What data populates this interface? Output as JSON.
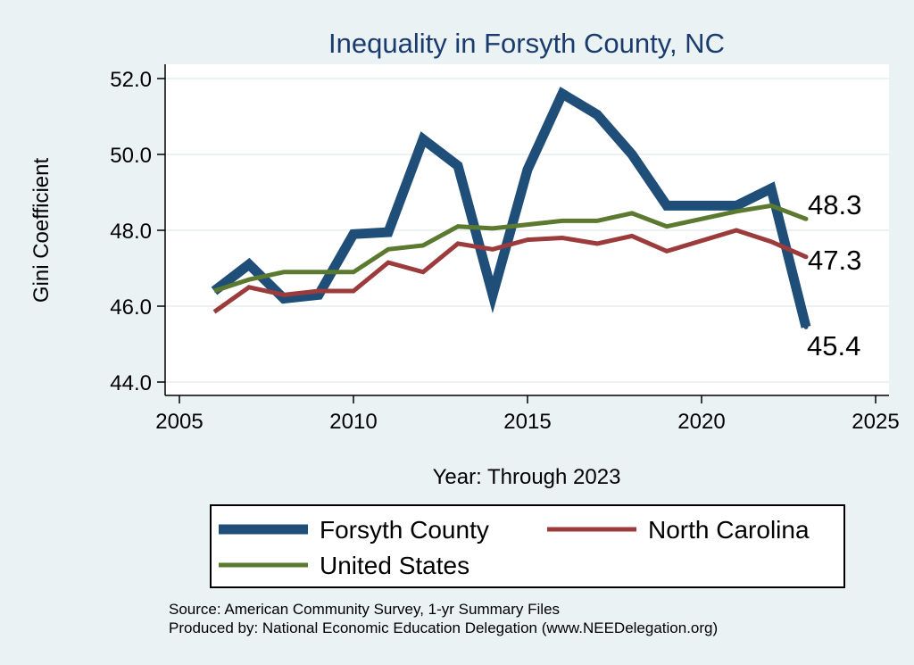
{
  "chart_data": {
    "type": "line",
    "title": "Inequality in Forsyth County, NC",
    "xlabel": "Year: Through 2023",
    "ylabel": "Gini Coefficient",
    "xlim": [
      2005,
      2025
    ],
    "ylim": [
      44,
      52
    ],
    "xticks": [
      2005,
      2010,
      2015,
      2020,
      2025
    ],
    "yticks": [
      44,
      46,
      48,
      50,
      52
    ],
    "ytick_labels": [
      "44.0",
      "46.0",
      "48.0",
      "50.0",
      "52.0"
    ],
    "grid": "horizontal",
    "x": [
      2006,
      2007,
      2008,
      2009,
      2010,
      2011,
      2012,
      2013,
      2014,
      2015,
      2016,
      2017,
      2018,
      2019,
      2021,
      2022,
      2023
    ],
    "series": [
      {
        "name": "Forsyth County",
        "color": "#1f4e79",
        "values": [
          46.4,
          47.1,
          46.2,
          46.3,
          47.9,
          47.95,
          50.4,
          49.7,
          46.3,
          49.6,
          51.6,
          51.05,
          50.0,
          48.65,
          48.65,
          49.1,
          45.45
        ],
        "end_label": "45.4"
      },
      {
        "name": "North Carolina",
        "color": "#9c3b3b",
        "values": [
          45.85,
          46.5,
          46.3,
          46.4,
          46.4,
          47.15,
          46.9,
          47.65,
          47.5,
          47.75,
          47.8,
          47.65,
          47.85,
          47.45,
          48.0,
          47.7,
          47.3
        ],
        "end_label": "47.3"
      },
      {
        "name": "United States",
        "color": "#5b7a30",
        "values": [
          46.4,
          46.7,
          46.9,
          46.9,
          46.9,
          47.5,
          47.6,
          48.1,
          48.05,
          48.15,
          48.25,
          48.25,
          48.45,
          48.1,
          48.5,
          48.65,
          48.3
        ],
        "end_label": "48.3"
      }
    ],
    "legend": {
      "placement": "bottom",
      "items": [
        "Forsyth County",
        "North Carolina",
        "United States"
      ]
    },
    "source_lines": [
      "Source: American Community Survey, 1-yr Summary Files",
      "Produced by: National Economic Education Delegation (www.NEEDelegation.org)"
    ]
  }
}
